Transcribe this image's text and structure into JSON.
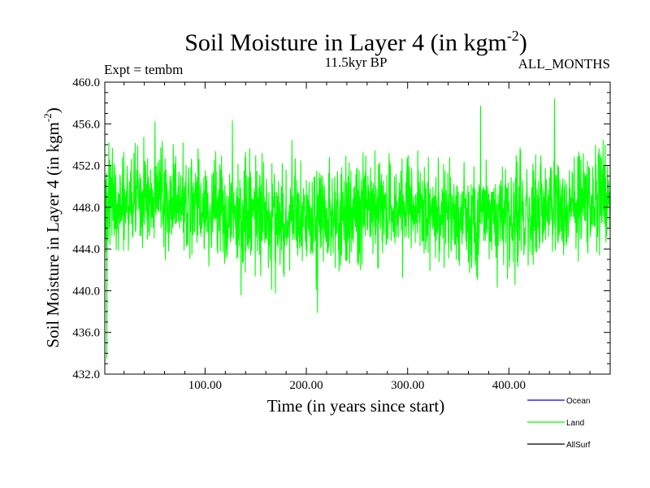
{
  "chart_data": {
    "type": "line",
    "title": "Soil Moisture in Layer 4 (in kgm",
    "title_sup": "-2",
    "title_close": ")",
    "subtitle_left": "Expt = tembm",
    "subtitle_center": "11.5kyr BP",
    "subtitle_right": "ALL_MONTHS",
    "xlabel": "Time (in years since start)",
    "ylabel": "Soil Moisture in Layer 4 (in kgm",
    "ylabel_sup": "-2",
    "ylabel_close": ")",
    "xlim": [
      1,
      500
    ],
    "ylim": [
      432,
      460
    ],
    "xticks": [
      100,
      200,
      300,
      400
    ],
    "xtick_labels": [
      "100.00",
      "200.00",
      "300.00",
      "400.00"
    ],
    "yticks": [
      432,
      436,
      440,
      444,
      448,
      452,
      456,
      460
    ],
    "ytick_labels": [
      "432.0",
      "436.0",
      "440.0",
      "444.0",
      "448.0",
      "452.0",
      "456.0",
      "460.0"
    ],
    "legend": [
      {
        "name": "Ocean",
        "color": "#0000ff"
      },
      {
        "name": "Land",
        "color": "#00ff00"
      },
      {
        "name": "AllSurf",
        "color": "#000000"
      }
    ],
    "series": [
      {
        "name": "Land",
        "color": "#00ff00",
        "samples_per_year": 4,
        "mean": 447.7,
        "spread": 2.6,
        "min": 433.5,
        "max": 458.4,
        "anchors": [
          {
            "x": 1,
            "y": 447
          },
          {
            "x": 3,
            "y": 433.5
          },
          {
            "x": 5,
            "y": 454.2
          },
          {
            "x": 60,
            "y": 447.5
          },
          {
            "x": 120,
            "y": 448.2
          },
          {
            "x": 127,
            "y": 456.3
          },
          {
            "x": 168,
            "y": 448
          },
          {
            "x": 211,
            "y": 437.9
          },
          {
            "x": 250,
            "y": 446.5
          },
          {
            "x": 300,
            "y": 447.6
          },
          {
            "x": 335,
            "y": 449.5
          },
          {
            "x": 372,
            "y": 457.7
          },
          {
            "x": 420,
            "y": 449
          },
          {
            "x": 445,
            "y": 458.4
          },
          {
            "x": 470,
            "y": 447.6
          },
          {
            "x": 495,
            "y": 454
          },
          {
            "x": 500,
            "y": 448
          }
        ]
      }
    ]
  }
}
